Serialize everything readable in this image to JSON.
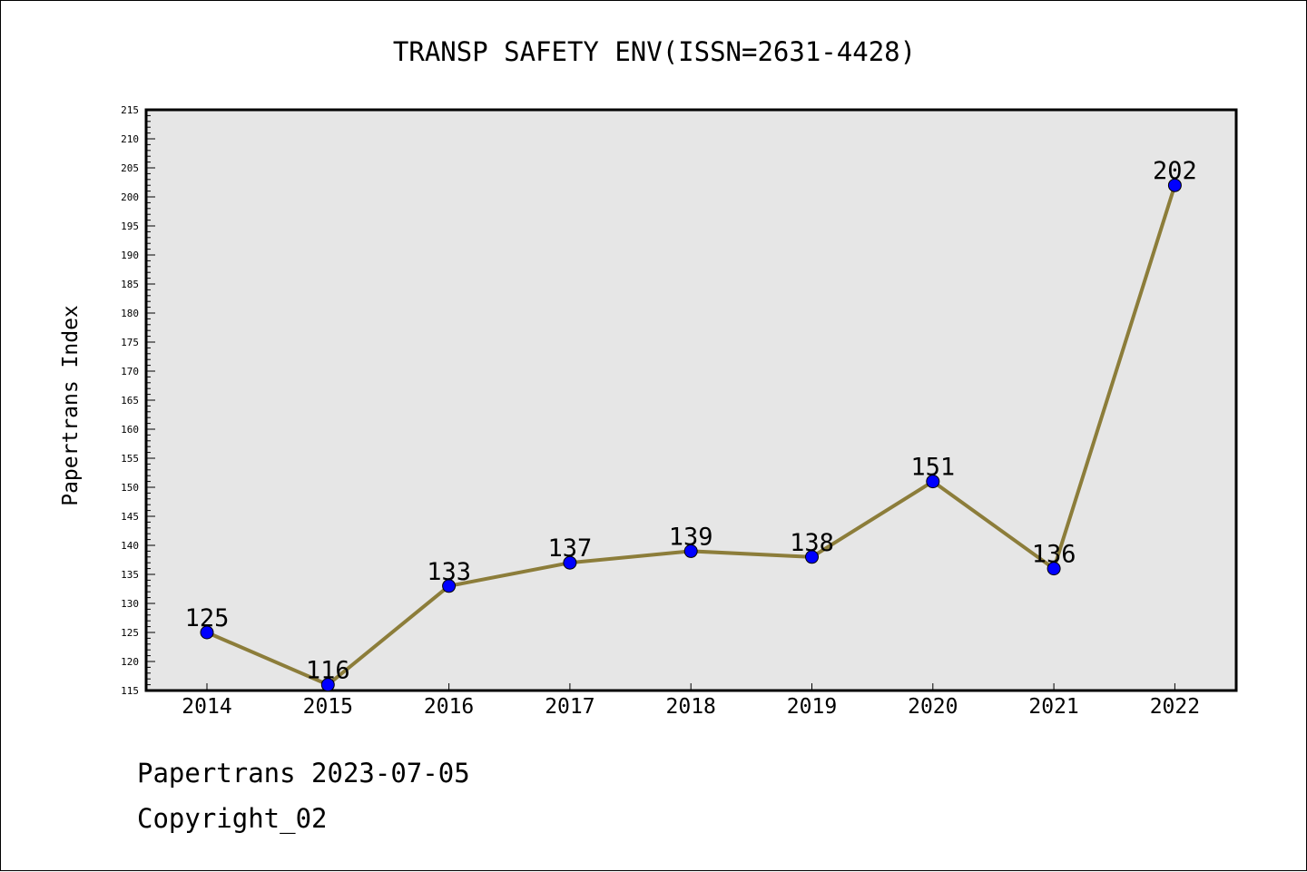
{
  "chart_data": {
    "type": "line",
    "title": "TRANSP SAFETY ENV(ISSN=2631-4428)",
    "xlabel": "",
    "ylabel": "Papertrans Index",
    "categories": [
      "2014",
      "2015",
      "2016",
      "2017",
      "2018",
      "2019",
      "2020",
      "2021",
      "2022"
    ],
    "series": [
      {
        "values": [
          125,
          116,
          133,
          137,
          139,
          138,
          151,
          136,
          202
        ]
      }
    ],
    "data_labels": [
      "125",
      "116",
      "133",
      "137",
      "139",
      "138",
      "151",
      "136",
      "202"
    ],
    "ylim": [
      115,
      215
    ],
    "y_major_step": 5,
    "y_minor_step": 1,
    "grid": false,
    "legend": "none",
    "colors": {
      "line": "#8c7d3a",
      "marker": "#0000ff",
      "plot_background": "#e6e6e6",
      "axes": "#000000"
    }
  },
  "footer": {
    "line1": "Papertrans 2023-07-05",
    "line2": "Copyright_02"
  }
}
